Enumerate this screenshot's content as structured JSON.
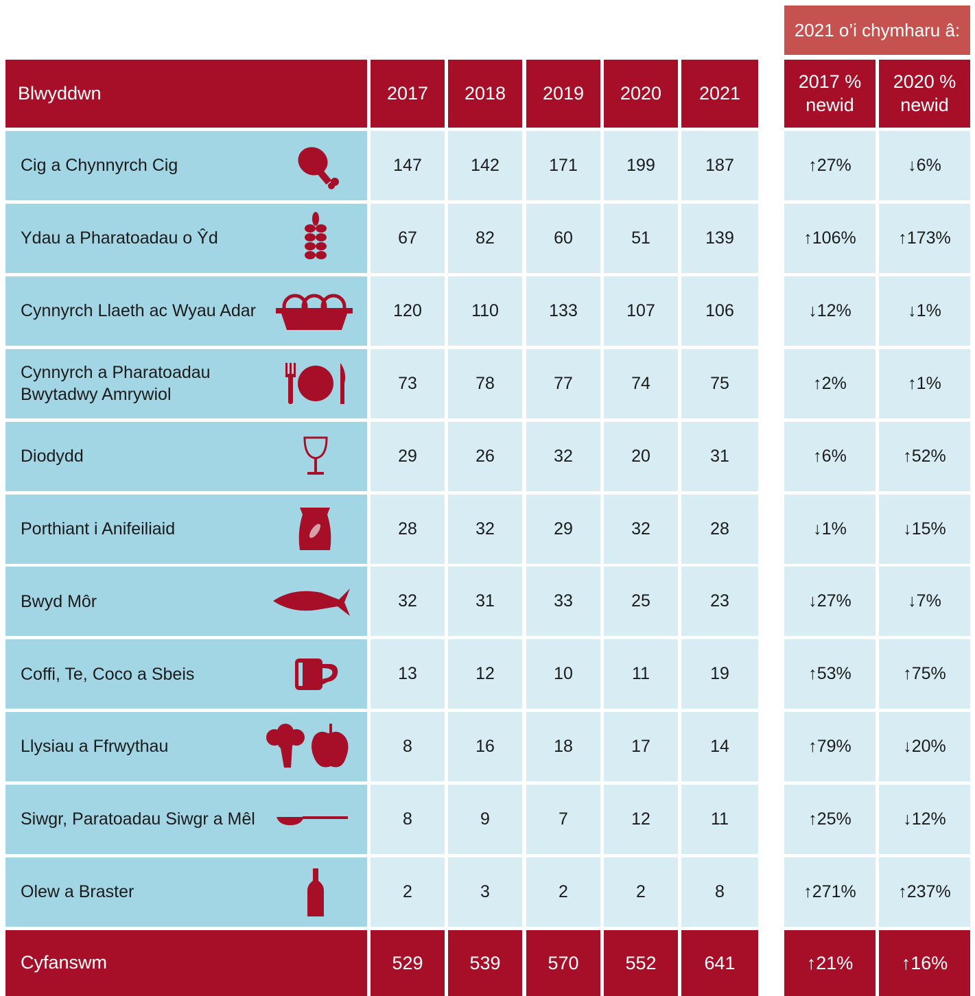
{
  "table": {
    "comparison_label": "2021 o’i chymharu â:",
    "header": {
      "label": "Blwyddwn",
      "years": [
        "2017",
        "2018",
        "2019",
        "2020",
        "2021"
      ],
      "changes": [
        "2017 % newid",
        "2020 % newid"
      ]
    },
    "rows": [
      {
        "label": "Cig a Chynnyrch Cig",
        "values": [
          147,
          142,
          171,
          199,
          187
        ],
        "changes": [
          "↑27%",
          "↓6%"
        ]
      },
      {
        "label": "Ydau a Pharatoadau o Ŷd",
        "values": [
          67,
          82,
          60,
          51,
          139
        ],
        "changes": [
          "↑106%",
          "↑173%"
        ]
      },
      {
        "label": "Cynnyrch Llaeth ac Wyau Adar",
        "values": [
          120,
          110,
          133,
          107,
          106
        ],
        "changes": [
          "↓12%",
          "↓1%"
        ]
      },
      {
        "label": "Cynnyrch a Pharatoadau Bwytadwy Amrywiol",
        "values": [
          73,
          78,
          77,
          74,
          75
        ],
        "changes": [
          "↑2%",
          "↑1%"
        ]
      },
      {
        "label": "Diodydd",
        "values": [
          29,
          26,
          32,
          20,
          31
        ],
        "changes": [
          "↑6%",
          "↑52%"
        ]
      },
      {
        "label": "Porthiant i Anifeiliaid",
        "values": [
          28,
          32,
          29,
          32,
          28
        ],
        "changes": [
          "↓1%",
          "↓15%"
        ]
      },
      {
        "label": "Bwyd Môr",
        "values": [
          32,
          31,
          33,
          25,
          23
        ],
        "changes": [
          "↓27%",
          "↓7%"
        ]
      },
      {
        "label": "Coffi, Te, Coco a Sbeis",
        "values": [
          13,
          12,
          10,
          11,
          19
        ],
        "changes": [
          "↑53%",
          "↑75%"
        ]
      },
      {
        "label": "Llysiau a Ffrwythau",
        "values": [
          8,
          16,
          18,
          17,
          14
        ],
        "changes": [
          "↑79%",
          "↓20%"
        ]
      },
      {
        "label": "Siwgr, Paratoadau Siwgr a Mêl",
        "values": [
          8,
          9,
          7,
          12,
          11
        ],
        "changes": [
          "↑25%",
          "↓12%"
        ]
      },
      {
        "label": "Olew a Braster",
        "values": [
          2,
          3,
          2,
          2,
          8
        ],
        "changes": [
          "↑271%",
          "↑237%"
        ]
      }
    ],
    "total": {
      "label": "Cyfanswm",
      "values": [
        529,
        539,
        570,
        552,
        641
      ],
      "changes": [
        "↑21%",
        "↑16%"
      ]
    }
  }
}
